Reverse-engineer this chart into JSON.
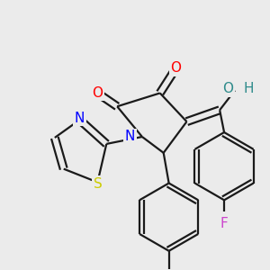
{
  "bg_color": "#ebebeb",
  "bond_color": "#1a1a1a",
  "line_width": 1.6,
  "atom_colors": {
    "O": "#ff0000",
    "N": "#0000ff",
    "S": "#cccc00",
    "F": "#cc44cc",
    "OH_O": "#2e8b8b",
    "OH_H": "#2e8b8b"
  },
  "font_size": 10
}
